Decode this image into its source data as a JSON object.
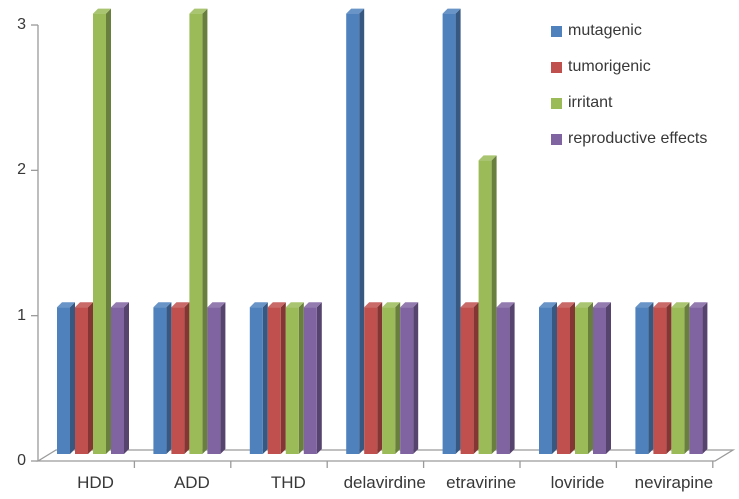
{
  "page": {
    "background": "#ffffff",
    "axis_color": "#9a9a9a",
    "text_color": "#383838"
  },
  "chart_data": {
    "type": "bar",
    "style": "3d-clustered-column",
    "title": "",
    "xlabel": "",
    "ylabel": "",
    "categories": [
      "HDD",
      "ADD",
      "THD",
      "delavirdine",
      "etravirine",
      "loviride",
      "nevirapine"
    ],
    "series": [
      {
        "name": "mutagenic",
        "color": "#4f81bd",
        "values": [
          1,
          1,
          1,
          3,
          3,
          1,
          1
        ]
      },
      {
        "name": "tumorigenic",
        "color": "#c0504d",
        "values": [
          1,
          1,
          1,
          1,
          1,
          1,
          1
        ]
      },
      {
        "name": "irritant",
        "color": "#9bbb59",
        "values": [
          3,
          3,
          1,
          1,
          2,
          1,
          1
        ]
      },
      {
        "name": "reproductive effects",
        "color": "#8064a2",
        "values": [
          1,
          1,
          1,
          1,
          1,
          1,
          1
        ]
      }
    ],
    "yticks": [
      0,
      1,
      2,
      3
    ],
    "ylim": [
      0,
      3
    ],
    "grid": false,
    "legend_position": "top-right"
  }
}
